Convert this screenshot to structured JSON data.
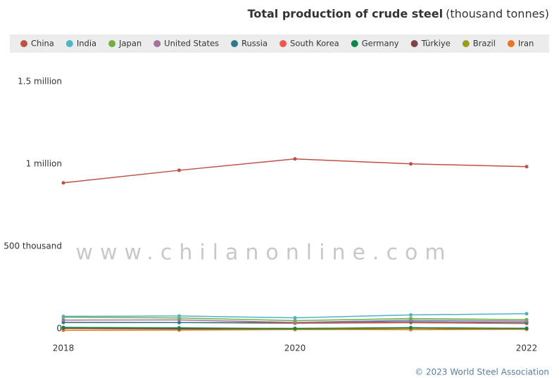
{
  "chart_data": {
    "type": "line",
    "title": "Total production of crude steel",
    "unit": "(thousand tonnes)",
    "x": [
      2018,
      2019,
      2020,
      2021,
      2022
    ],
    "xlim": [
      2018,
      2022
    ],
    "xticks": [
      2018,
      2020,
      2022
    ],
    "ylim": [
      0,
      1600000
    ],
    "yticks": [
      0,
      {
        "value": 500000,
        "label": "500 thousand"
      },
      {
        "value": 1000000,
        "label": "1 million"
      },
      {
        "value": 1500000,
        "label": "1.5 million"
      }
    ],
    "grid": false,
    "series": [
      {
        "name": "China",
        "color": "#bf5045",
        "values": [
          920000,
          996000,
          1065000,
          1035000,
          1018000
        ]
      },
      {
        "name": "India",
        "color": "#4fb3c6",
        "values": [
          109300,
          111400,
          100300,
          118200,
          125300
        ]
      },
      {
        "name": "Japan",
        "color": "#6fb043",
        "values": [
          104300,
          99300,
          83200,
          96300,
          89200
        ]
      },
      {
        "name": "United States",
        "color": "#a2729d",
        "values": [
          86600,
          87800,
          72700,
          85800,
          80500
        ]
      },
      {
        "name": "Russia",
        "color": "#2f7a8a",
        "values": [
          72100,
          71600,
          71600,
          77000,
          71500
        ]
      },
      {
        "name": "South Korea",
        "color": "#ee5650",
        "values": [
          72500,
          71400,
          67100,
          70400,
          65800
        ]
      },
      {
        "name": "Germany",
        "color": "#0a8a48",
        "values": [
          42400,
          39600,
          35700,
          40200,
          36800
        ]
      },
      {
        "name": "Türkiye",
        "color": "#7d4545",
        "values": [
          37300,
          33700,
          35800,
          40400,
          35100
        ]
      },
      {
        "name": "Brazil",
        "color": "#9b9b1c",
        "values": [
          35400,
          32600,
          31400,
          36100,
          34000
        ]
      },
      {
        "name": "Iran",
        "color": "#f07422",
        "values": [
          24500,
          25600,
          29000,
          28300,
          30600
        ]
      }
    ],
    "source": "© 2023 World Steel Association",
    "watermark": "www.chilanonline.com"
  }
}
